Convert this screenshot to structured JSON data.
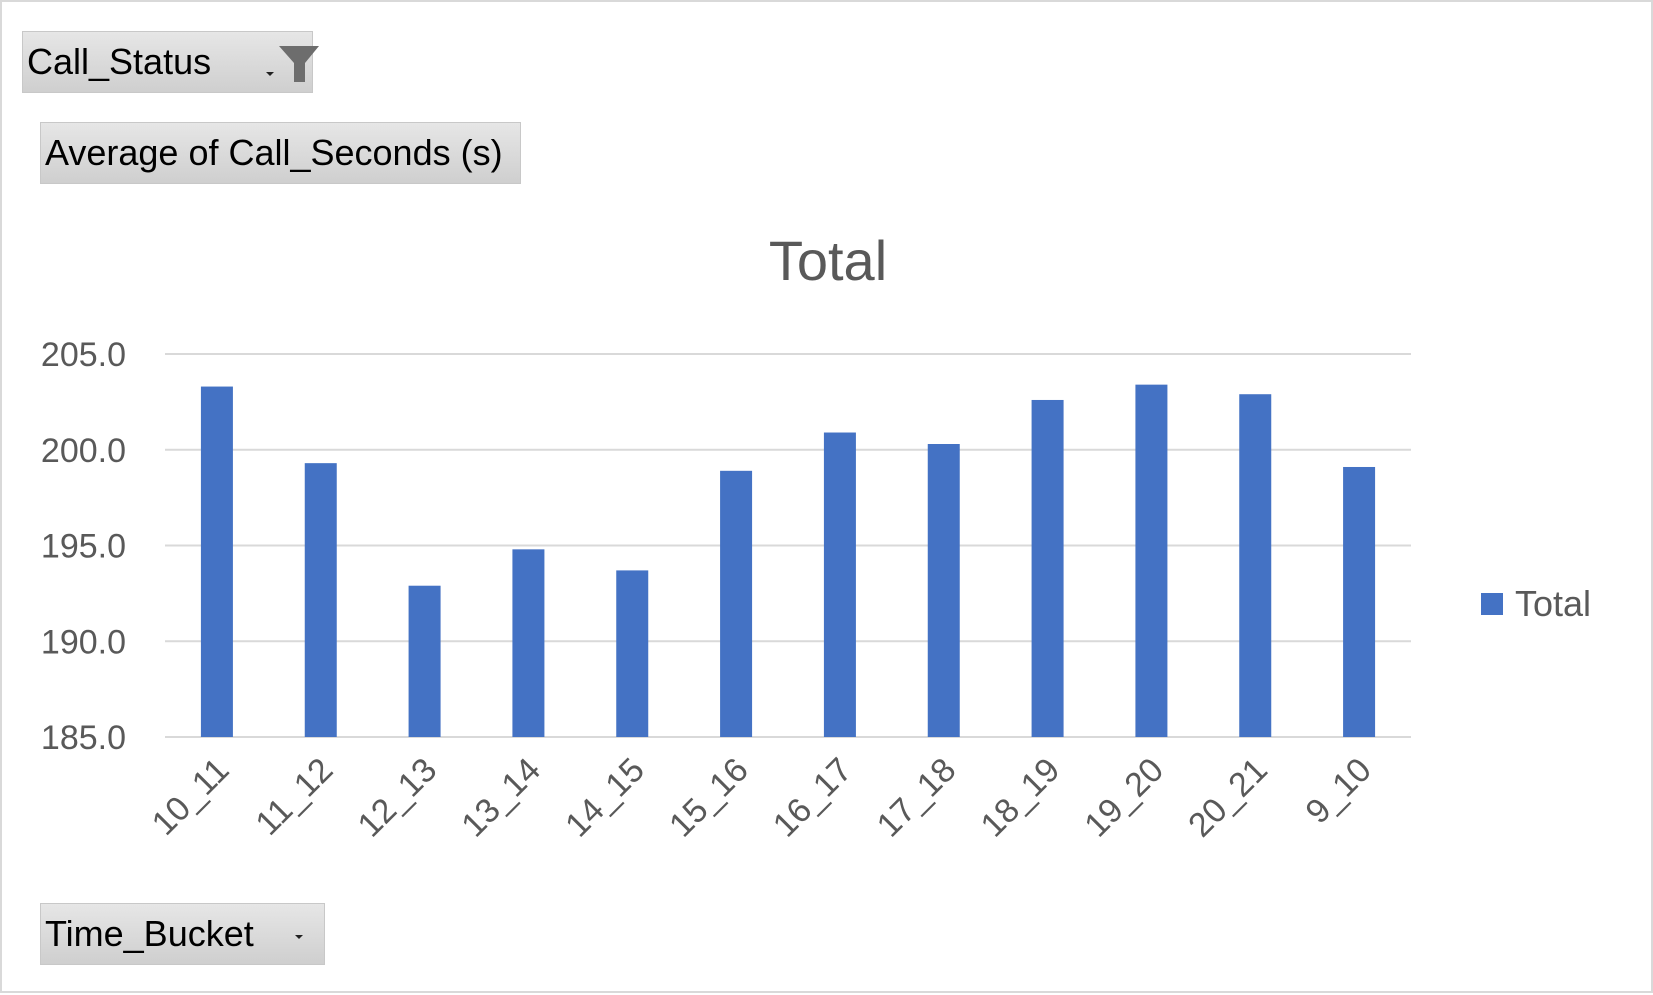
{
  "filter_button": {
    "label": "Call_Status",
    "icon": "filter-funnel-icon"
  },
  "value_button": {
    "label": "Average  of Call_Seconds  (s)"
  },
  "axis_button": {
    "label": "Time_Bucket",
    "icon": "dropdown-arrow-icon"
  },
  "chart_data": {
    "type": "bar",
    "title": "Total",
    "categories": [
      "10_11",
      "11_12",
      "12_13",
      "13_14",
      "14_15",
      "15_16",
      "16_17",
      "17_18",
      "18_19",
      "19_20",
      "20_21",
      "9_10"
    ],
    "series": [
      {
        "name": "Total",
        "color": "#4472c4",
        "values": [
          203.3,
          199.3,
          192.9,
          194.8,
          193.7,
          198.9,
          200.9,
          200.3,
          202.6,
          203.4,
          202.9,
          199.1
        ]
      }
    ],
    "ylim": [
      185,
      205
    ],
    "yticks": [
      "205.0",
      "200.0",
      "195.0",
      "190.0",
      "185.0"
    ],
    "grid": true,
    "legend": "right",
    "xlabel": "",
    "ylabel": ""
  }
}
